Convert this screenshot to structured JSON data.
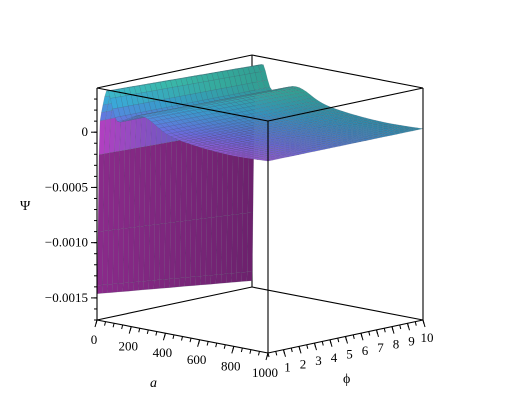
{
  "chart_data": {
    "type": "surface3d",
    "title": "",
    "xlabel": "a",
    "ylabel": "ϕ",
    "zlabel": "Ψ",
    "xlim": [
      0,
      1000
    ],
    "ylim": [
      0,
      10
    ],
    "zlim": [
      -0.0017,
      0.0004
    ],
    "x_ticks": [
      {
        "value": 0,
        "label": "0"
      },
      {
        "value": 200,
        "label": "200"
      },
      {
        "value": 400,
        "label": "400"
      },
      {
        "value": 600,
        "label": "600"
      },
      {
        "value": 800,
        "label": "800"
      },
      {
        "value": 1000,
        "label": "1000"
      }
    ],
    "y_ticks": [
      {
        "value": 1,
        "label": "1"
      },
      {
        "value": 2,
        "label": "2"
      },
      {
        "value": 3,
        "label": "3"
      },
      {
        "value": 4,
        "label": "4"
      },
      {
        "value": 5,
        "label": "5"
      },
      {
        "value": 6,
        "label": "6"
      },
      {
        "value": 7,
        "label": "7"
      },
      {
        "value": 8,
        "label": "8"
      },
      {
        "value": 9,
        "label": "9"
      },
      {
        "value": 10,
        "label": "10"
      }
    ],
    "z_ticks": [
      {
        "value": 0,
        "label": "0"
      },
      {
        "value": -0.0005,
        "label": "−0.0005"
      },
      {
        "value": -0.001,
        "label": "−0.0010"
      },
      {
        "value": -0.0015,
        "label": "−0.0015"
      }
    ],
    "surface": {
      "description_points": [
        {
          "a": 0,
          "z": -0.0016
        },
        {
          "a": 30,
          "z": 0.0001
        },
        {
          "a": 60,
          "z": 0.00035
        },
        {
          "a": 120,
          "z": 0.0001
        },
        {
          "a": 250,
          "z": 0.0002
        },
        {
          "a": 500,
          "z": 0.0001
        },
        {
          "a": 1000,
          "z": 0.0
        }
      ],
      "colormap": [
        "#8a2a8a",
        "#b23fc0",
        "#6a6ee0",
        "#3aa8d8",
        "#3ec8b8"
      ]
    },
    "grid": false,
    "legend": "none"
  }
}
